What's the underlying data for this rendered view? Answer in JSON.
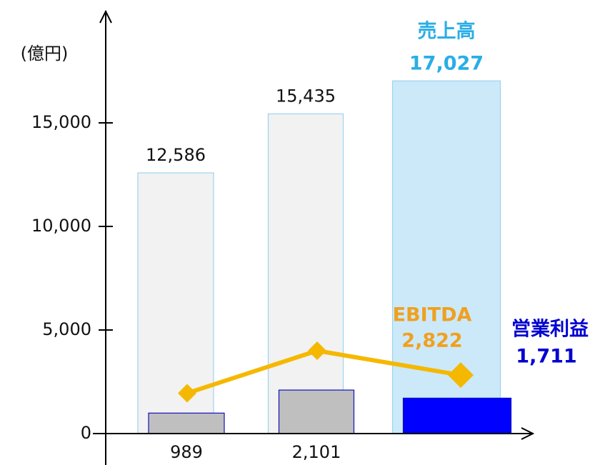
{
  "chart_data": {
    "type": "bar",
    "y_axis_label": "(億円)",
    "ylim": [
      0,
      20000
    ],
    "yticks": [
      0,
      {
        "value": 5000,
        "label": "5,000"
      },
      {
        "value": 10000,
        "label": "10,000"
      },
      {
        "value": 15000,
        "label": "15,000"
      }
    ],
    "series": [
      {
        "name": "売上高",
        "type": "bar",
        "colors": [
          "#f2f2f2",
          "#f2f2f2",
          "#cce9f9"
        ],
        "stroke": "#9dd3f0",
        "label_color": "#29aee6",
        "values": [
          12586,
          15435,
          17027
        ],
        "value_labels": [
          "12,586",
          "15,435",
          "17,027"
        ]
      },
      {
        "name": "営業利益",
        "type": "bar",
        "colors": [
          "#bfbfbf",
          "#bfbfbf",
          "#0000ff"
        ],
        "stroke": "#1010c0",
        "label_color": "#0000d0",
        "values": [
          989,
          2101,
          1711
        ],
        "value_labels": [
          "989",
          "2,101",
          "1,711"
        ]
      },
      {
        "name": "EBITDA",
        "type": "line",
        "color": "#f5b800",
        "label_color": "#f0a020",
        "values": [
          1950,
          4000,
          2822
        ],
        "value_labels": [
          null,
          null,
          "2,822"
        ]
      }
    ]
  }
}
